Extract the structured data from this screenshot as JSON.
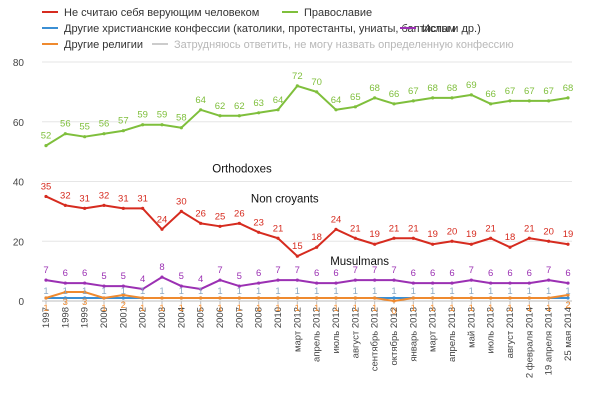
{
  "chart_data": {
    "type": "line",
    "legend": [
      {
        "label": "Не считаю себя верующим человеком",
        "color": "#d62b1f"
      },
      {
        "label": "Православие",
        "color": "#7fbf3c"
      },
      {
        "label": "Другие христианские конфессии (католики, протестанты, униаты, баптисты и др.)",
        "color": "#3b8fd4"
      },
      {
        "label": "Ислам",
        "color": "#9b30b3"
      },
      {
        "label": "Другие религии",
        "color": "#ef8a2f"
      },
      {
        "label": "Затрудняюсь ответить, не могу назвать определенную конфессию",
        "color": "#cccccc"
      }
    ],
    "categories": [
      "1997",
      "1998",
      "1999",
      "2000",
      "2001",
      "2002",
      "2003",
      "2004",
      "2005",
      "2006",
      "2007",
      "2008",
      "2010",
      "март 2012",
      "апрель 2012",
      "июль 2012",
      "август 2012",
      "сентябрь 2012",
      "октябрь 2012",
      "январь 2013",
      "март 2013",
      "апрель 2013",
      "май 2013",
      "июль 2013",
      "август 2013",
      "2 февраля 2014",
      "19 апреля 2014",
      "25 мая 2014"
    ],
    "ylim": [
      0,
      80
    ],
    "yticks": [
      0,
      20,
      40,
      60,
      80
    ],
    "grid": true,
    "series": [
      {
        "name": "Православие",
        "color": "#7fbf3c",
        "values": [
          52,
          56,
          55,
          56,
          57,
          59,
          59,
          58,
          64,
          62,
          62,
          63,
          64,
          72,
          70,
          64,
          65,
          68,
          66,
          67,
          68,
          68,
          69,
          66,
          67,
          67,
          67,
          68
        ]
      },
      {
        "name": "Не считаю себя верующим человеком",
        "color": "#d62b1f",
        "values": [
          35,
          32,
          31,
          32,
          31,
          31,
          24,
          30,
          26,
          25,
          26,
          23,
          21,
          15,
          18,
          24,
          21,
          19,
          21,
          21,
          19,
          20,
          19,
          21,
          18,
          21,
          20,
          19
        ]
      },
      {
        "name": "Ислам",
        "color": "#9b30b3",
        "values": [
          7,
          6,
          6,
          5,
          5,
          4,
          8,
          5,
          4,
          7,
          5,
          6,
          7,
          7,
          6,
          6,
          7,
          7,
          7,
          6,
          6,
          6,
          7,
          6,
          6,
          6,
          7,
          6
        ]
      },
      {
        "name": "Другие христианские конфессии (католики, протестанты, униаты, баптисты и др.)",
        "color": "#3b8fd4",
        "values": [
          1,
          1,
          1,
          1,
          1,
          1,
          1,
          1,
          1,
          1,
          1,
          1,
          1,
          1,
          1,
          1,
          1,
          1,
          1,
          1,
          1,
          1,
          1,
          1,
          1,
          1,
          1,
          1
        ]
      },
      {
        "name": "Другие религии",
        "color": "#ef8a2f",
        "values": [
          1,
          3,
          3,
          1,
          2,
          1,
          1,
          1,
          1,
          1,
          1,
          1,
          1,
          1,
          1,
          1,
          1,
          1,
          0,
          1,
          1,
          1,
          1,
          1,
          1,
          1,
          1,
          2
        ]
      }
    ],
    "annotations": [
      {
        "text": "Orthodoxes",
        "color": "#111111",
        "x_index": 8.6,
        "y": 43
      },
      {
        "text": "Non croyants",
        "color": "#111111",
        "x_index": 10.6,
        "y": 33
      },
      {
        "text": "Musulmans",
        "color": "#111111",
        "x_index": 14.7,
        "y": 12
      }
    ]
  }
}
